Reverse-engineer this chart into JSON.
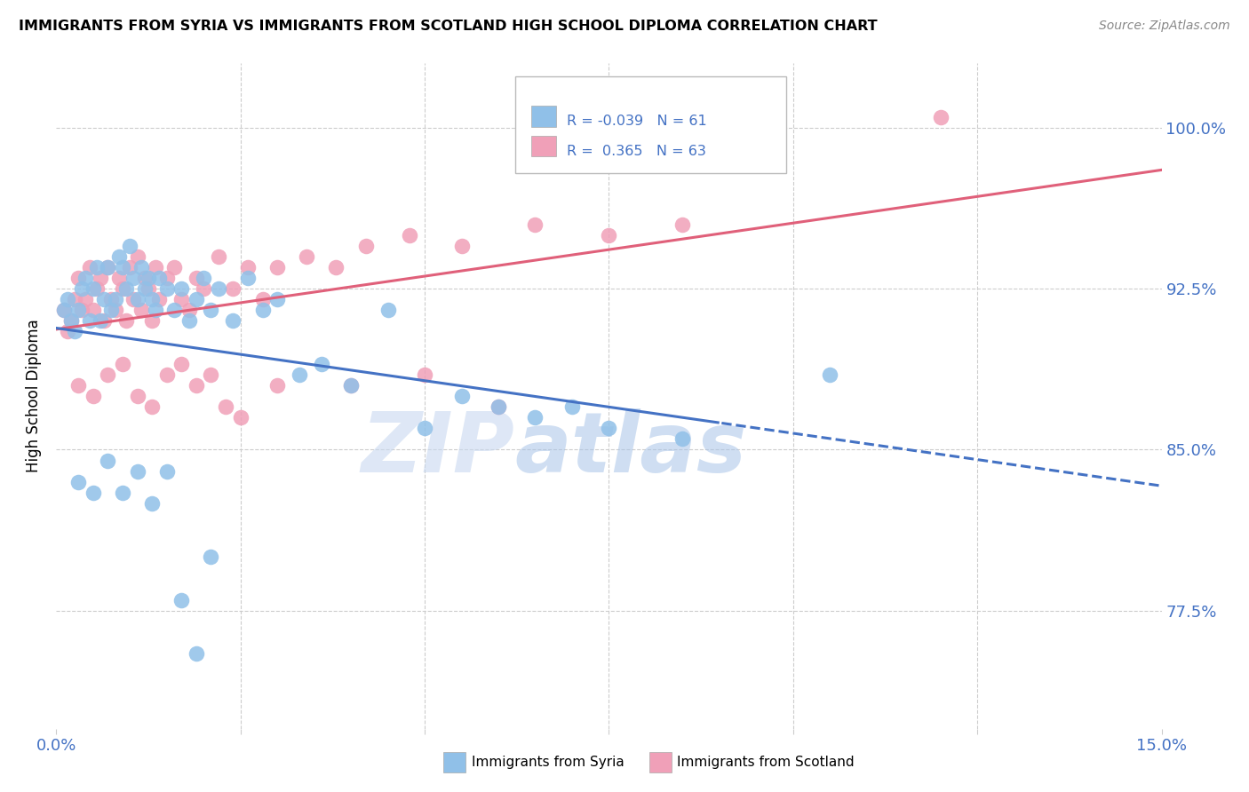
{
  "title": "IMMIGRANTS FROM SYRIA VS IMMIGRANTS FROM SCOTLAND HIGH SCHOOL DIPLOMA CORRELATION CHART",
  "source": "Source: ZipAtlas.com",
  "ylabel_label": "High School Diploma",
  "legend_syria": "Immigrants from Syria",
  "legend_scotland": "Immigrants from Scotland",
  "R_syria": "-0.039",
  "N_syria": "61",
  "R_scotland": "0.365",
  "N_scotland": "63",
  "color_syria": "#90C0E8",
  "color_scotland": "#F0A0B8",
  "color_syria_line": "#4472C4",
  "color_scotland_line": "#E0607A",
  "watermark_zip": "ZIP",
  "watermark_atlas": "atlas",
  "xlim": [
    0.0,
    15.0
  ],
  "ylim": [
    72.0,
    103.0
  ],
  "ytick_vals": [
    77.5,
    85.0,
    92.5,
    100.0
  ],
  "ytick_labels": [
    "77.5%",
    "85.0%",
    "92.5%",
    "100.0%"
  ],
  "syria_x": [
    0.1,
    0.15,
    0.2,
    0.25,
    0.3,
    0.35,
    0.4,
    0.45,
    0.5,
    0.55,
    0.6,
    0.65,
    0.7,
    0.75,
    0.8,
    0.85,
    0.9,
    0.95,
    1.0,
    1.05,
    1.1,
    1.15,
    1.2,
    1.25,
    1.3,
    1.35,
    1.4,
    1.5,
    1.6,
    1.7,
    1.8,
    1.9,
    2.0,
    2.1,
    2.2,
    2.4,
    2.6,
    2.8,
    3.0,
    3.3,
    3.6,
    4.0,
    4.5,
    5.0,
    5.5,
    6.0,
    6.5,
    7.0,
    7.5,
    8.5,
    10.5,
    0.3,
    0.5,
    0.7,
    0.9,
    1.1,
    1.3,
    1.5,
    1.7,
    1.9,
    2.1
  ],
  "syria_y": [
    91.5,
    92.0,
    91.0,
    90.5,
    91.5,
    92.5,
    93.0,
    91.0,
    92.5,
    93.5,
    91.0,
    92.0,
    93.5,
    91.5,
    92.0,
    94.0,
    93.5,
    92.5,
    94.5,
    93.0,
    92.0,
    93.5,
    92.5,
    93.0,
    92.0,
    91.5,
    93.0,
    92.5,
    91.5,
    92.5,
    91.0,
    92.0,
    93.0,
    91.5,
    92.5,
    91.0,
    93.0,
    91.5,
    92.0,
    88.5,
    89.0,
    88.0,
    91.5,
    86.0,
    87.5,
    87.0,
    86.5,
    87.0,
    86.0,
    85.5,
    88.5,
    83.5,
    83.0,
    84.5,
    83.0,
    84.0,
    82.5,
    84.0,
    78.0,
    75.5,
    80.0
  ],
  "scotland_x": [
    0.1,
    0.15,
    0.2,
    0.25,
    0.3,
    0.35,
    0.4,
    0.45,
    0.5,
    0.55,
    0.6,
    0.65,
    0.7,
    0.75,
    0.8,
    0.85,
    0.9,
    0.95,
    1.0,
    1.05,
    1.1,
    1.15,
    1.2,
    1.25,
    1.3,
    1.35,
    1.4,
    1.5,
    1.6,
    1.7,
    1.8,
    1.9,
    2.0,
    2.2,
    2.4,
    2.6,
    2.8,
    3.0,
    3.4,
    3.8,
    4.2,
    4.8,
    5.5,
    6.5,
    7.5,
    8.5,
    12.0,
    0.3,
    0.5,
    0.7,
    0.9,
    1.1,
    1.3,
    1.5,
    1.7,
    1.9,
    2.1,
    2.3,
    2.5,
    3.0,
    4.0,
    5.0,
    6.0
  ],
  "scotland_y": [
    91.5,
    90.5,
    91.0,
    92.0,
    93.0,
    91.5,
    92.0,
    93.5,
    91.5,
    92.5,
    93.0,
    91.0,
    93.5,
    92.0,
    91.5,
    93.0,
    92.5,
    91.0,
    93.5,
    92.0,
    94.0,
    91.5,
    93.0,
    92.5,
    91.0,
    93.5,
    92.0,
    93.0,
    93.5,
    92.0,
    91.5,
    93.0,
    92.5,
    94.0,
    92.5,
    93.5,
    92.0,
    93.5,
    94.0,
    93.5,
    94.5,
    95.0,
    94.5,
    95.5,
    95.0,
    95.5,
    100.5,
    88.0,
    87.5,
    88.5,
    89.0,
    87.5,
    87.0,
    88.5,
    89.0,
    88.0,
    88.5,
    87.0,
    86.5,
    88.0,
    88.0,
    88.5,
    87.0
  ]
}
